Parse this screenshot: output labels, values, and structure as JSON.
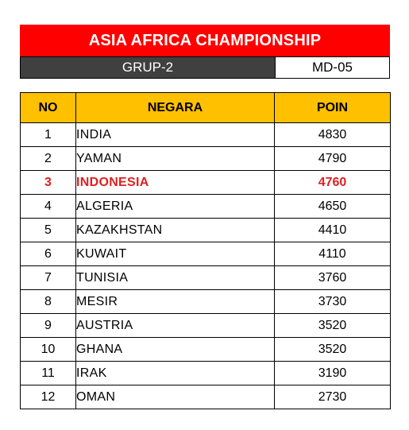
{
  "header": {
    "title": "ASIA AFRICA CHAMPIONSHIP",
    "group": "GRUP-2",
    "matchday": "MD-05"
  },
  "table": {
    "columns": [
      "NO",
      "NEGARA",
      "POIN"
    ],
    "rows": [
      {
        "no": "1",
        "country": "INDIA",
        "points": "4830"
      },
      {
        "no": "2",
        "country": "YAMAN",
        "points": "4790"
      },
      {
        "no": "3",
        "country": "INDONESIA",
        "points": "4760",
        "highlight": true
      },
      {
        "no": "4",
        "country": "ALGERIA",
        "points": "4650"
      },
      {
        "no": "5",
        "country": "KAZAKHSTAN",
        "points": "4410"
      },
      {
        "no": "6",
        "country": "KUWAIT",
        "points": "4110"
      },
      {
        "no": "7",
        "country": "TUNISIA",
        "points": "3760"
      },
      {
        "no": "8",
        "country": "MESIR",
        "points": "3730"
      },
      {
        "no": "9",
        "country": "AUSTRIA",
        "points": "3520"
      },
      {
        "no": "10",
        "country": "GHANA",
        "points": "3520"
      },
      {
        "no": "11",
        "country": "IRAK",
        "points": "3190"
      },
      {
        "no": "12",
        "country": "OMAN",
        "points": "2730"
      }
    ]
  },
  "colors": {
    "title_bg": "#ff0000",
    "group_bg": "#404040",
    "header_bg": "#ffc000",
    "highlight_text": "#e02020"
  }
}
